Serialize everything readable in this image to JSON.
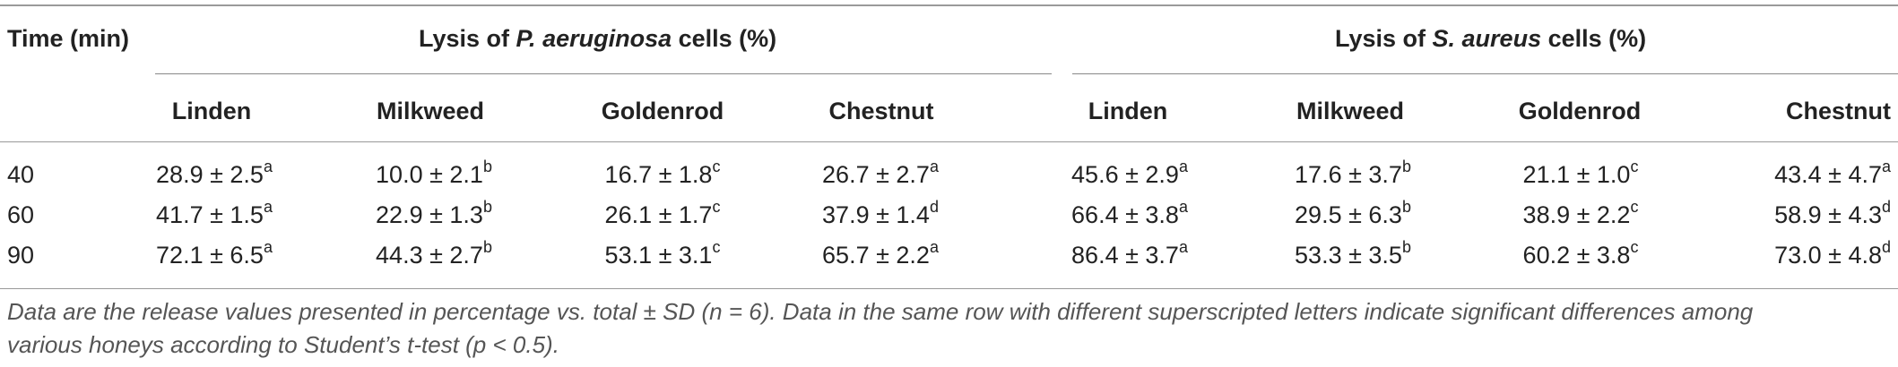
{
  "table": {
    "time_header": "Time (min)",
    "groups": [
      {
        "prefix": "Lysis of ",
        "species": "P. aeruginosa",
        "suffix": " cells (%)"
      },
      {
        "prefix": "Lysis of ",
        "species": "S. aureus",
        "suffix": " cells (%)"
      }
    ],
    "columns": [
      "Linden",
      "Milkweed",
      "Goldenrod",
      "Chestnut",
      "Linden",
      "Milkweed",
      "Goldenrod",
      "Chestnut"
    ],
    "rows": [
      {
        "time": "40",
        "cells": [
          {
            "v": "28.9 ± 2.5",
            "s": "a"
          },
          {
            "v": "10.0 ± 2.1",
            "s": "b"
          },
          {
            "v": "16.7 ± 1.8",
            "s": "c"
          },
          {
            "v": "26.7 ± 2.7",
            "s": "a"
          },
          {
            "v": "45.6 ± 2.9",
            "s": "a"
          },
          {
            "v": "17.6 ± 3.7",
            "s": "b"
          },
          {
            "v": "21.1 ± 1.0",
            "s": "c"
          },
          {
            "v": "43.4 ± 4.7",
            "s": "a"
          }
        ]
      },
      {
        "time": "60",
        "cells": [
          {
            "v": "41.7 ± 1.5",
            "s": "a"
          },
          {
            "v": "22.9 ± 1.3",
            "s": "b"
          },
          {
            "v": "26.1 ± 1.7",
            "s": "c"
          },
          {
            "v": "37.9 ± 1.4",
            "s": "d"
          },
          {
            "v": "66.4 ± 3.8",
            "s": "a"
          },
          {
            "v": "29.5 ± 6.3",
            "s": "b"
          },
          {
            "v": "38.9 ± 2.2",
            "s": "c"
          },
          {
            "v": "58.9 ± 4.3",
            "s": "d"
          }
        ]
      },
      {
        "time": "90",
        "cells": [
          {
            "v": "72.1 ± 6.5",
            "s": "a"
          },
          {
            "v": "44.3 ± 2.7",
            "s": "b"
          },
          {
            "v": "53.1 ± 3.1",
            "s": "c"
          },
          {
            "v": "65.7 ± 2.2",
            "s": "a"
          },
          {
            "v": "86.4 ± 3.7",
            "s": "a"
          },
          {
            "v": "53.3 ± 3.5",
            "s": "b"
          },
          {
            "v": "60.2 ± 3.8",
            "s": "c"
          },
          {
            "v": "73.0 ± 4.8",
            "s": "d"
          }
        ]
      }
    ],
    "footnote_line1": "Data are the release values presented in percentage vs. total ± SD (n = 6). Data in the same row with different superscripted letters indicate significant differences among",
    "footnote_line2": "various honeys according to Student’s t-test (p < 0.5)."
  }
}
